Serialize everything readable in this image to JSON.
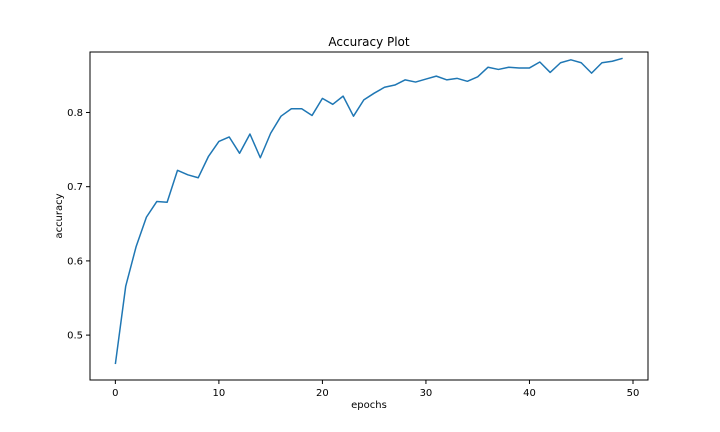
{
  "chart_data": {
    "type": "line",
    "title": "Accuracy Plot",
    "xlabel": "epochs",
    "ylabel": "accuracy",
    "xlim": [
      -2.45,
      51.45
    ],
    "ylim": [
      0.4395,
      0.8815
    ],
    "xticks": [
      0,
      10,
      20,
      30,
      40,
      50
    ],
    "yticks": [
      0.5,
      0.6,
      0.7,
      0.8
    ],
    "grid": false,
    "line_color": "#1f77b4",
    "series": [
      {
        "x": [
          0,
          1,
          2,
          3,
          4,
          5,
          6,
          7,
          8,
          9,
          10,
          11,
          12,
          13,
          14,
          15,
          16,
          17,
          18,
          19,
          20,
          21,
          22,
          23,
          24,
          25,
          26,
          27,
          28,
          29,
          30,
          31,
          32,
          33,
          34,
          35,
          36,
          37,
          38,
          39,
          40,
          41,
          42,
          43,
          44,
          45,
          46,
          47,
          48,
          49
        ],
        "values": [
          0.461,
          0.566,
          0.619,
          0.659,
          0.68,
          0.679,
          0.722,
          0.716,
          0.712,
          0.741,
          0.761,
          0.767,
          0.745,
          0.771,
          0.739,
          0.772,
          0.795,
          0.805,
          0.805,
          0.796,
          0.819,
          0.811,
          0.822,
          0.795,
          0.817,
          0.826,
          0.834,
          0.837,
          0.844,
          0.841,
          0.845,
          0.849,
          0.844,
          0.846,
          0.842,
          0.848,
          0.861,
          0.858,
          0.861,
          0.86,
          0.86,
          0.868,
          0.854,
          0.867,
          0.871,
          0.867,
          0.853,
          0.867,
          0.869,
          0.873
        ]
      }
    ]
  }
}
